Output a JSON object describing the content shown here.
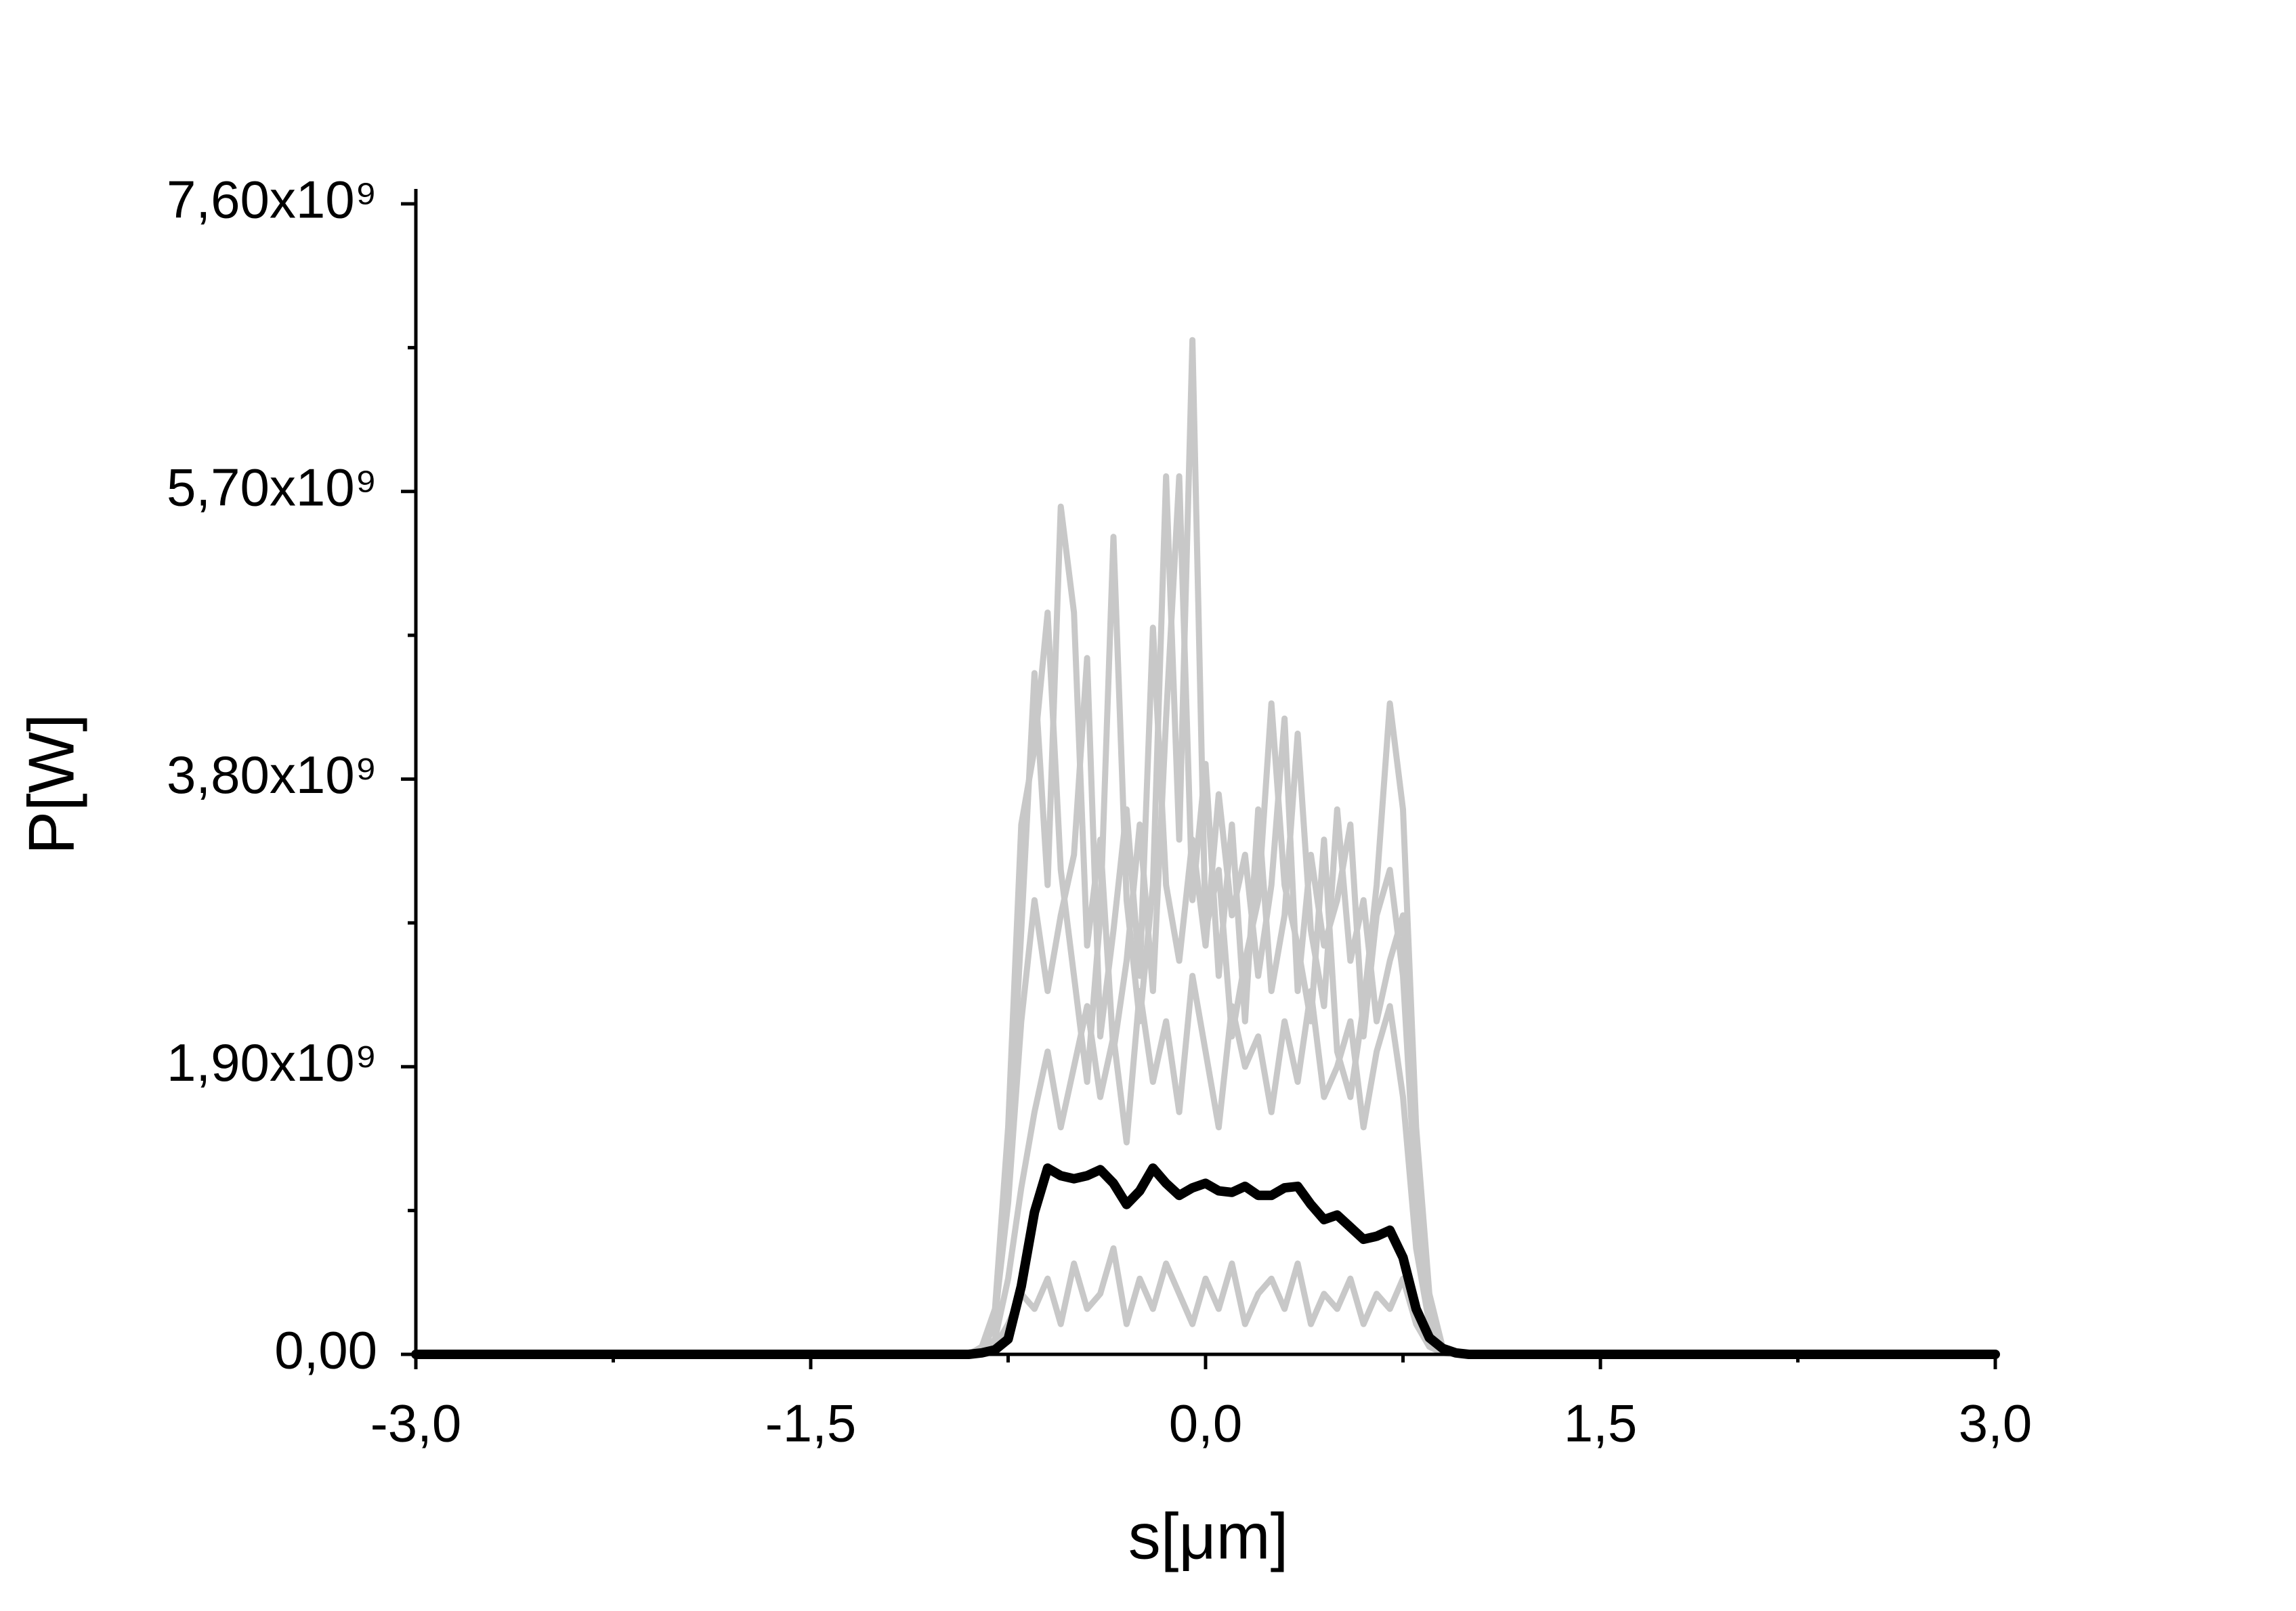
{
  "chart_data": {
    "type": "line",
    "x_label": "s[μm]",
    "y_label": "P[W]",
    "xlim": [
      -3.0,
      3.0
    ],
    "xticks": [
      {
        "value": -3.0,
        "label": "-3,0"
      },
      {
        "value": -1.5,
        "label": "-1,5"
      },
      {
        "value": 0.0,
        "label": "0,0"
      },
      {
        "value": 1.5,
        "label": "1,5"
      },
      {
        "value": 3.0,
        "label": "3,0"
      }
    ],
    "ylim": [
      0,
      7600000000.0
    ],
    "yticks": [
      {
        "value": 0,
        "label": "0,00"
      },
      {
        "value": 1900000000.0,
        "label": "1,90x10⁹"
      },
      {
        "value": 3800000000.0,
        "label": "3,80x10⁹"
      },
      {
        "value": 5700000000.0,
        "label": "5,70x10⁹"
      },
      {
        "value": 7600000000.0,
        "label": "7,60x10⁹"
      }
    ],
    "x": [
      -3.0,
      -0.9,
      -0.85,
      -0.8,
      -0.75,
      -0.7,
      -0.65,
      -0.6,
      -0.55,
      -0.5,
      -0.45,
      -0.4,
      -0.35,
      -0.3,
      -0.25,
      -0.2,
      -0.15,
      -0.1,
      -0.05,
      0.0,
      0.05,
      0.1,
      0.15,
      0.2,
      0.25,
      0.3,
      0.35,
      0.4,
      0.45,
      0.5,
      0.55,
      0.6,
      0.65,
      0.7,
      0.75,
      0.8,
      0.85,
      0.9,
      0.95,
      1.0,
      3.0
    ],
    "series": [
      {
        "color": "#c8c8c8",
        "values": [
          0,
          0,
          50000000.0,
          300000000.0,
          1500000000.0,
          3500000000.0,
          4000000000.0,
          4900000000.0,
          3200000000.0,
          2500000000.0,
          1800000000.0,
          2900000000.0,
          5400000000.0,
          3000000000.0,
          2200000000.0,
          3100000000.0,
          5800000000.0,
          3400000000.0,
          6700000000.0,
          2800000000.0,
          3200000000.0,
          2100000000.0,
          2600000000.0,
          3000000000.0,
          4300000000.0,
          3100000000.0,
          2700000000.0,
          2200000000.0,
          3400000000.0,
          2000000000.0,
          1700000000.0,
          2300000000.0,
          3100000000.0,
          4300000000.0,
          3600000000.0,
          1500000000.0,
          400000000.0,
          50000000.0,
          0,
          0,
          0
        ]
      },
      {
        "color": "#c8c8c8",
        "values": [
          0,
          0,
          20000000.0,
          200000000.0,
          1200000000.0,
          2800000000.0,
          4500000000.0,
          3100000000.0,
          5600000000.0,
          4900000000.0,
          2700000000.0,
          3400000000.0,
          2000000000.0,
          2600000000.0,
          3500000000.0,
          2400000000.0,
          4200000000.0,
          5800000000.0,
          3000000000.0,
          3900000000.0,
          2500000000.0,
          3500000000.0,
          2200000000.0,
          3600000000.0,
          2400000000.0,
          2900000000.0,
          4100000000.0,
          2800000000.0,
          2300000000.0,
          3600000000.0,
          2600000000.0,
          3000000000.0,
          2200000000.0,
          2600000000.0,
          2900000000.0,
          1200000000.0,
          300000000.0,
          30000000.0,
          0,
          0,
          0
        ]
      },
      {
        "color": "#c8c8c8",
        "values": [
          0,
          0,
          30000000.0,
          250000000.0,
          1000000000.0,
          2200000000.0,
          3000000000.0,
          2400000000.0,
          2900000000.0,
          3300000000.0,
          4600000000.0,
          2100000000.0,
          2800000000.0,
          3600000000.0,
          2500000000.0,
          4800000000.0,
          3100000000.0,
          2600000000.0,
          3400000000.0,
          2700000000.0,
          3700000000.0,
          2900000000.0,
          3300000000.0,
          2500000000.0,
          3100000000.0,
          4200000000.0,
          2400000000.0,
          3300000000.0,
          2700000000.0,
          3000000000.0,
          3500000000.0,
          2100000000.0,
          2900000000.0,
          3200000000.0,
          2500000000.0,
          1000000000.0,
          250000000.0,
          20000000.0,
          0,
          0,
          0
        ]
      },
      {
        "color": "#c8c8c8",
        "values": [
          0,
          0,
          10000000.0,
          100000000.0,
          500000000.0,
          1100000000.0,
          1600000000.0,
          2000000000.0,
          1500000000.0,
          1900000000.0,
          2300000000.0,
          1700000000.0,
          2100000000.0,
          1400000000.0,
          2400000000.0,
          1800000000.0,
          2200000000.0,
          1600000000.0,
          2500000000.0,
          2000000000.0,
          1500000000.0,
          2300000000.0,
          1900000000.0,
          2100000000.0,
          1600000000.0,
          2200000000.0,
          1800000000.0,
          2400000000.0,
          1700000000.0,
          1900000000.0,
          2200000000.0,
          1500000000.0,
          2000000000.0,
          2300000000.0,
          1700000000.0,
          700000000.0,
          200000000.0,
          20000000.0,
          0,
          0,
          0
        ]
      },
      {
        "color": "#c8c8c8",
        "values": [
          0,
          0,
          10000000.0,
          50000000.0,
          200000000.0,
          400000000.0,
          300000000.0,
          500000000.0,
          200000000.0,
          600000000.0,
          300000000.0,
          400000000.0,
          700000000.0,
          200000000.0,
          500000000.0,
          300000000.0,
          600000000.0,
          400000000.0,
          200000000.0,
          500000000.0,
          300000000.0,
          600000000.0,
          200000000.0,
          400000000.0,
          500000000.0,
          300000000.0,
          600000000.0,
          200000000.0,
          400000000.0,
          300000000.0,
          500000000.0,
          200000000.0,
          400000000.0,
          300000000.0,
          500000000.0,
          200000000.0,
          50000000.0,
          10000000.0,
          0,
          0,
          0
        ]
      },
      {
        "color": "#000000",
        "values": [
          0,
          0,
          10000000.0,
          30000000.0,
          100000000.0,
          450000000.0,
          940000000.0,
          1230000000.0,
          1180000000.0,
          1160000000.0,
          1180000000.0,
          1220000000.0,
          1130000000.0,
          990000000.0,
          1080000000.0,
          1230000000.0,
          1130000000.0,
          1050000000.0,
          1100000000.0,
          1130000000.0,
          1080000000.0,
          1070000000.0,
          1110000000.0,
          1050000000.0,
          1050000000.0,
          1100000000.0,
          1110000000.0,
          990000000.0,
          890000000.0,
          920000000.0,
          840000000.0,
          760000000.0,
          780000000.0,
          820000000.0,
          640000000.0,
          300000000.0,
          110000000.0,
          40000000.0,
          10000000.0,
          0,
          0
        ]
      }
    ]
  }
}
